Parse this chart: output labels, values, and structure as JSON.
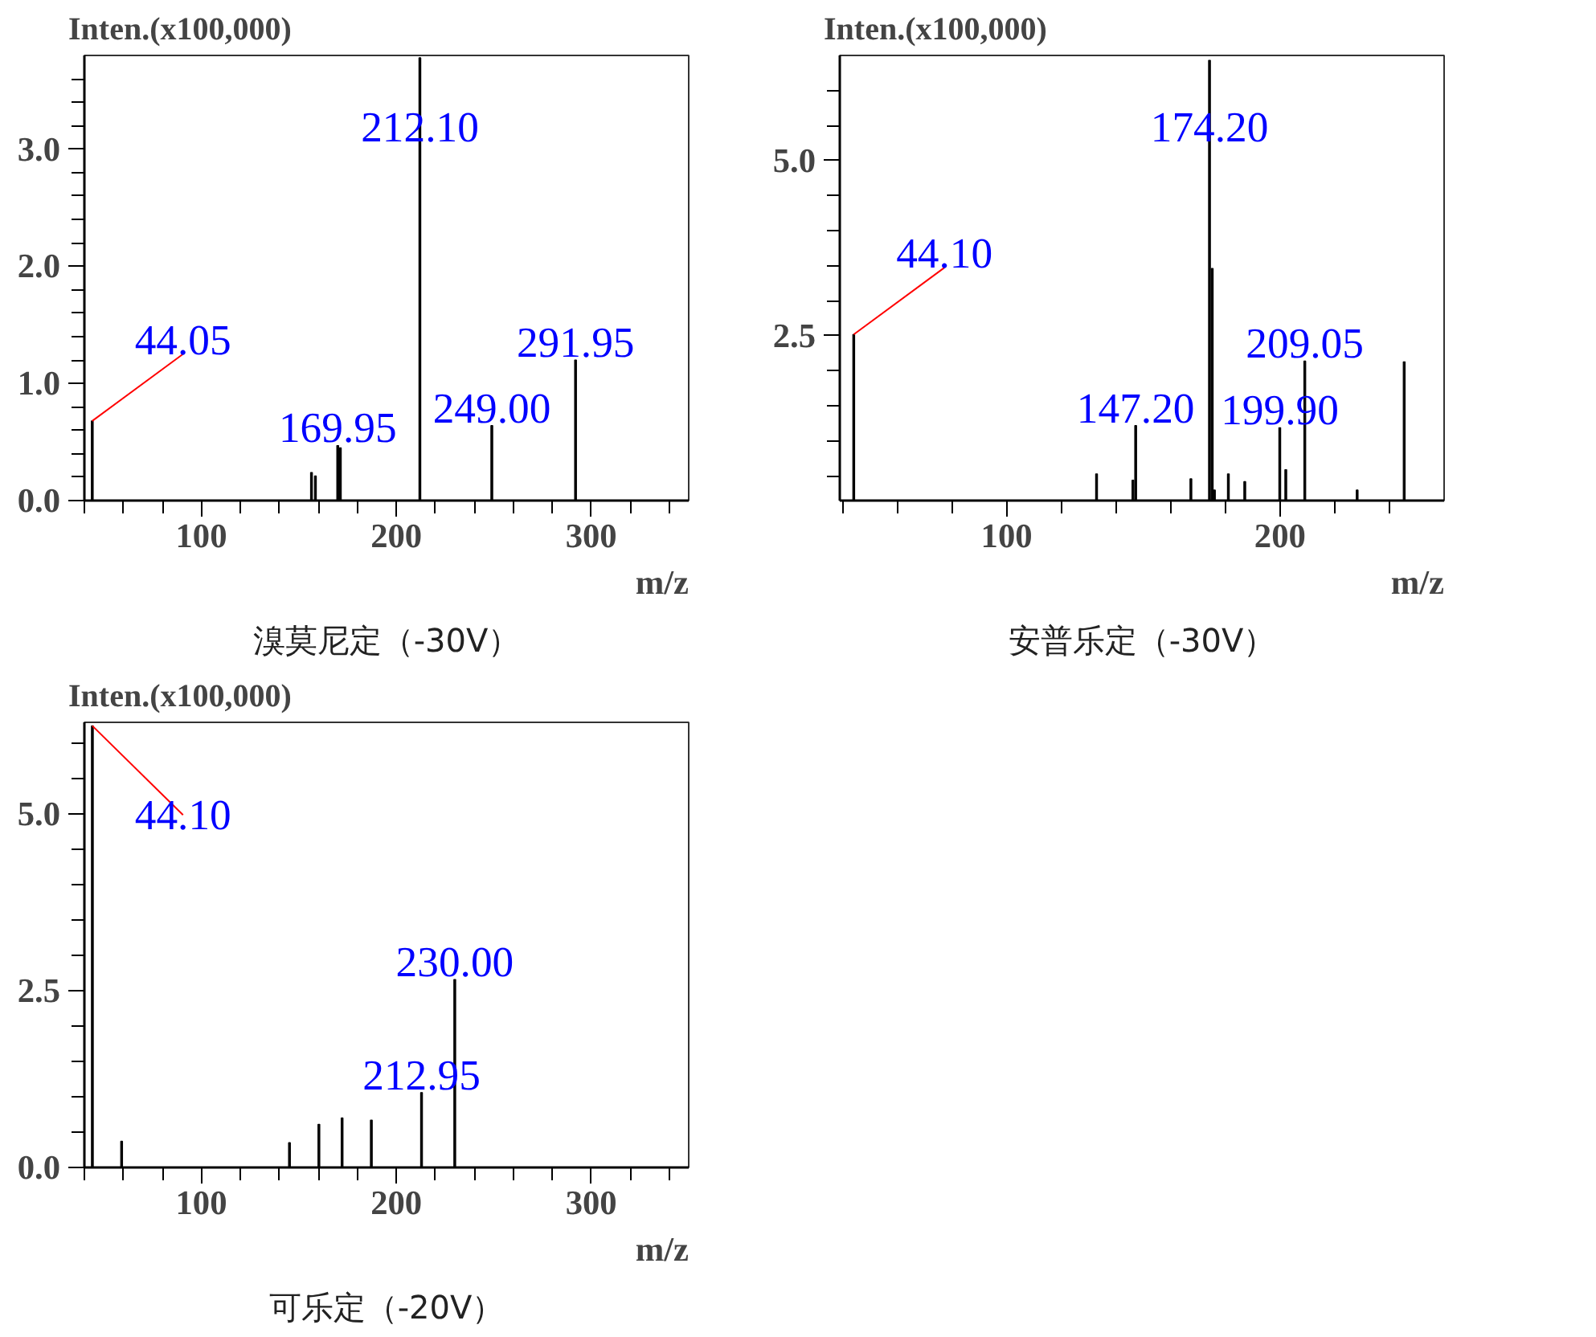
{
  "chart_data": [
    {
      "type": "bar",
      "title": "溴莫尼定（-30V）",
      "ylabel": "Inten.(x100,000)",
      "xlabel": "m/z",
      "xlim": [
        40,
        350
      ],
      "ylim": [
        0,
        3.8
      ],
      "xticks": [
        {
          "value": 40,
          "label": null
        },
        {
          "value": 60,
          "label": null
        },
        {
          "value": 80,
          "label": null
        },
        100,
        {
          "value": 120,
          "label": null
        },
        {
          "value": 140,
          "label": null
        },
        {
          "value": 160,
          "label": null
        },
        {
          "value": 180,
          "label": null
        },
        200,
        {
          "value": 220,
          "label": null
        },
        {
          "value": 240,
          "label": null
        },
        {
          "value": 260,
          "label": null
        },
        {
          "value": 280,
          "label": null
        },
        300,
        {
          "value": 320,
          "label": null
        },
        {
          "value": 340,
          "label": null
        }
      ],
      "yticks": [
        {
          "value": 0,
          "label": "0.0"
        },
        {
          "value": 0.2,
          "label": null
        },
        {
          "value": 0.4,
          "label": null
        },
        {
          "value": 0.6,
          "label": null
        },
        {
          "value": 0.8,
          "label": null
        },
        {
          "value": 1,
          "label": "1.0"
        },
        {
          "value": 1.2,
          "label": null
        },
        {
          "value": 1.4,
          "label": null
        },
        {
          "value": 1.6,
          "label": null
        },
        {
          "value": 1.8,
          "label": null
        },
        {
          "value": 2,
          "label": "2.0"
        },
        {
          "value": 2.2,
          "label": null
        },
        {
          "value": 2.4,
          "label": null
        },
        {
          "value": 2.6,
          "label": null
        },
        {
          "value": 2.8,
          "label": null
        },
        {
          "value": 3,
          "label": "3.0"
        },
        {
          "value": 3.2,
          "label": null
        },
        {
          "value": 3.4,
          "label": null
        },
        {
          "value": 3.6,
          "label": null
        }
      ],
      "series": [
        {
          "color": "#000000",
          "x": [
            44.05,
            156.5,
            158.5,
            169.95,
            171.3,
            212.1,
            249.0,
            291.95
          ],
          "values": [
            0.68,
            0.24,
            0.21,
            0.47,
            0.45,
            3.78,
            0.64,
            1.2
          ]
        }
      ],
      "annotations": [
        {
          "text": "44.05",
          "x": 44.05,
          "y": 0.68
        },
        {
          "text": "169.95",
          "x": 169.95,
          "y": 0.47
        },
        {
          "text": "212.10",
          "x": 212.1,
          "y": 3.78
        },
        {
          "text": "249.00",
          "x": 249.0,
          "y": 0.64
        },
        {
          "text": "291.95",
          "x": 291.95,
          "y": 1.2
        }
      ],
      "grid": false
    },
    {
      "type": "bar",
      "title": "安普乐定（-30V）",
      "ylabel": "Inten.(x100,000)",
      "xlabel": "m/z",
      "xlim": [
        39,
        260
      ],
      "ylim": [
        0.15,
        6.5
      ],
      "xticks": [
        {
          "value": 40,
          "label": null
        },
        {
          "value": 60,
          "label": null
        },
        {
          "value": 80,
          "label": null
        },
        100,
        {
          "value": 120,
          "label": null
        },
        {
          "value": 140,
          "label": null
        },
        {
          "value": 160,
          "label": null
        },
        {
          "value": 180,
          "label": null
        },
        200,
        {
          "value": 220,
          "label": null
        },
        {
          "value": 240,
          "label": null
        }
      ],
      "yticks": [
        {
          "value": 0.5,
          "label": null
        },
        {
          "value": 1,
          "label": null
        },
        {
          "value": 1.5,
          "label": null
        },
        {
          "value": 2,
          "label": null
        },
        {
          "value": 2.5,
          "label": "2.5"
        },
        {
          "value": 3,
          "label": null
        },
        {
          "value": 3.5,
          "label": null
        },
        {
          "value": 4,
          "label": null
        },
        {
          "value": 4.5,
          "label": null
        },
        {
          "value": 5,
          "label": "5.0"
        },
        {
          "value": 5.5,
          "label": null
        },
        {
          "value": 6,
          "label": null
        }
      ],
      "series": [
        {
          "color": "#000000",
          "x": [
            44.1,
            132.9,
            146.2,
            147.2,
            167.4,
            174.2,
            175.2,
            176.0,
            181.1,
            187.1,
            199.9,
            202.1,
            209.05,
            228.2,
            245.4
          ],
          "values": [
            2.52,
            0.53,
            0.44,
            1.22,
            0.46,
            6.43,
            3.46,
            0.3,
            0.53,
            0.42,
            1.19,
            0.59,
            2.14,
            0.3,
            2.13
          ]
        }
      ],
      "annotations": [
        {
          "text": "44.10",
          "x": 44.1,
          "y": 2.52
        },
        {
          "text": "147.20",
          "x": 147.2,
          "y": 1.22
        },
        {
          "text": "174.20",
          "x": 174.2,
          "y": 6.43
        },
        {
          "text": "199.90",
          "x": 199.9,
          "y": 1.19
        },
        {
          "text": "209.05",
          "x": 209.05,
          "y": 2.14
        }
      ],
      "grid": false
    },
    {
      "type": "bar",
      "title": "可乐定（-20V）",
      "ylabel": "Inten.(x100,000)",
      "xlabel": "m/z",
      "xlim": [
        40,
        350
      ],
      "ylim": [
        0,
        6.3
      ],
      "xticks": [
        {
          "value": 40,
          "label": null
        },
        {
          "value": 60,
          "label": null
        },
        {
          "value": 80,
          "label": null
        },
        100,
        {
          "value": 120,
          "label": null
        },
        {
          "value": 140,
          "label": null
        },
        {
          "value": 160,
          "label": null
        },
        {
          "value": 180,
          "label": null
        },
        200,
        {
          "value": 220,
          "label": null
        },
        {
          "value": 240,
          "label": null
        },
        {
          "value": 260,
          "label": null
        },
        {
          "value": 280,
          "label": null
        },
        300,
        {
          "value": 320,
          "label": null
        },
        {
          "value": 340,
          "label": null
        }
      ],
      "yticks": [
        {
          "value": 0,
          "label": "0.0"
        },
        {
          "value": 0.5,
          "label": null
        },
        {
          "value": 1,
          "label": null
        },
        {
          "value": 1.5,
          "label": null
        },
        {
          "value": 2,
          "label": null
        },
        {
          "value": 2.5,
          "label": "2.5"
        },
        {
          "value": 3,
          "label": null
        },
        {
          "value": 3.5,
          "label": null
        },
        {
          "value": 4,
          "label": null
        },
        {
          "value": 4.5,
          "label": null
        },
        {
          "value": 5,
          "label": "5.0"
        },
        {
          "value": 5.5,
          "label": null
        },
        {
          "value": 6,
          "label": null
        }
      ],
      "series": [
        {
          "color": "#000000",
          "x": [
            44.1,
            59.1,
            145.2,
            160.3,
            172.2,
            187.2,
            212.95,
            230.0
          ],
          "values": [
            6.25,
            0.37,
            0.35,
            0.61,
            0.7,
            0.67,
            1.06,
            2.66
          ]
        }
      ],
      "annotations": [
        {
          "text": "44.10",
          "x": 44.1,
          "y": 6.25
        },
        {
          "text": "212.95",
          "x": 212.95,
          "y": 1.06
        },
        {
          "text": "230.00",
          "x": 230.0,
          "y": 2.66
        }
      ],
      "grid": false
    }
  ]
}
